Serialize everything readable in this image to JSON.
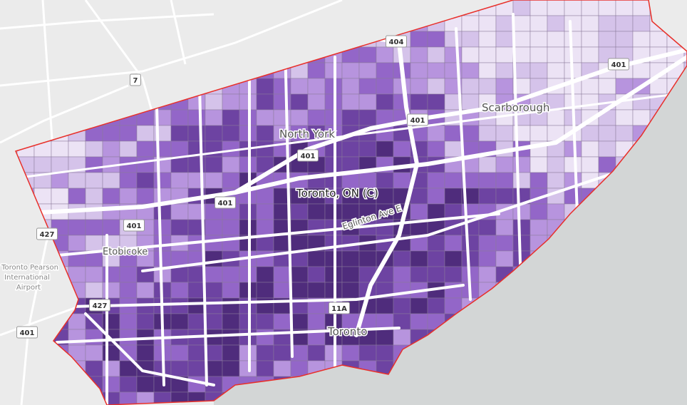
{
  "map": {
    "colors": {
      "land": "#ebebeb",
      "water": "#d3d6d6",
      "boundary": "#e8302a",
      "road": "#ffffff",
      "classes": [
        "#ece3f5",
        "#d5c3ea",
        "#b794de",
        "#9366c8",
        "#6d43a2",
        "#4f2c7c"
      ]
    },
    "places": [
      {
        "name": "North York"
      },
      {
        "name": "Scarborough"
      },
      {
        "name": "Toronto, ON (C)"
      },
      {
        "name": "Eglinton Ave E"
      },
      {
        "name": "Etobicoke"
      },
      {
        "name": "Toronto Pearson"
      },
      {
        "name": "International"
      },
      {
        "name": "Airport"
      },
      {
        "name": "Toronto"
      }
    ],
    "shields": [
      "404",
      "401",
      "7",
      "401",
      "401",
      "401",
      "401",
      "427",
      "427",
      "11A",
      "401"
    ]
  }
}
